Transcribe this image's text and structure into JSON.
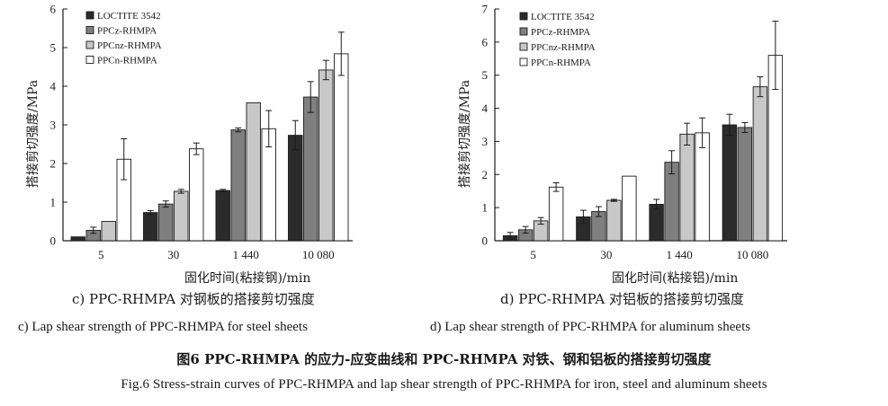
{
  "chart_data": [
    {
      "type": "bar",
      "panel": "c",
      "categories": [
        "5",
        "30",
        "1 440",
        "10 080"
      ],
      "series": [
        {
          "name": "LOCTITE 3542",
          "values": [
            0.1,
            0.73,
            1.3,
            2.73
          ],
          "errors": [
            0.0,
            0.05,
            0.03,
            0.38
          ],
          "color": "#2b2b2b"
        },
        {
          "name": "PPCz-RHMPA",
          "values": [
            0.27,
            0.95,
            2.87,
            3.72
          ],
          "errors": [
            0.08,
            0.08,
            0.05,
            0.4
          ],
          "color": "#7f7f7f"
        },
        {
          "name": "PPCnz-RHMPA",
          "values": [
            0.5,
            1.28,
            3.57,
            4.42
          ],
          "errors": [
            0.0,
            0.05,
            0.0,
            0.25
          ],
          "color": "#c8c8c8"
        },
        {
          "name": "PPCn-RHMPA",
          "values": [
            2.11,
            2.38,
            2.9,
            4.84
          ],
          "errors": [
            0.53,
            0.15,
            0.47,
            0.56
          ],
          "color": "#ffffff"
        }
      ],
      "xlabel": "固化时间(粘接钢)/min",
      "ylabel": "搭接剪切强度/MPa",
      "ylim": [
        0,
        6
      ],
      "yticks": [
        0,
        1,
        2,
        3,
        4,
        5,
        6
      ],
      "legend": "top-left",
      "grid": false,
      "caption_zh": "c) PPC-RHMPA 对钢板的搭接剪切强度",
      "caption_en": "c) Lap shear strength of PPC-RHMPA for steel sheets"
    },
    {
      "type": "bar",
      "panel": "d",
      "categories": [
        "5",
        "30",
        "1 440",
        "10 080"
      ],
      "series": [
        {
          "name": "LOCTITE 3542",
          "values": [
            0.15,
            0.72,
            1.1,
            3.5
          ],
          "errors": [
            0.1,
            0.2,
            0.15,
            0.32
          ],
          "color": "#2b2b2b"
        },
        {
          "name": "PPCz-RHMPA",
          "values": [
            0.33,
            0.88,
            2.37,
            3.42
          ],
          "errors": [
            0.1,
            0.15,
            0.35,
            0.15
          ],
          "color": "#7f7f7f"
        },
        {
          "name": "PPCnz-RHMPA",
          "values": [
            0.6,
            1.22,
            3.22,
            4.65
          ],
          "errors": [
            0.1,
            0.03,
            0.33,
            0.3
          ],
          "color": "#c8c8c8"
        },
        {
          "name": "PPCn-RHMPA",
          "values": [
            1.62,
            1.95,
            3.26,
            5.6
          ],
          "errors": [
            0.13,
            0.0,
            0.45,
            1.03
          ],
          "color": "#ffffff"
        }
      ],
      "xlabel": "固化时间(粘接铝)/min",
      "ylabel": "搭接剪切强度/MPa",
      "ylim": [
        0,
        7
      ],
      "yticks": [
        0,
        1,
        2,
        3,
        4,
        5,
        6,
        7
      ],
      "legend": "top-left",
      "grid": false,
      "caption_zh": "d) PPC-RHMPA 对铝板的搭接剪切强度",
      "caption_en": "d) Lap shear strength of PPC-RHMPA for aluminum sheets"
    }
  ],
  "figure": {
    "title_zh": "图6 PPC-RHMPA 的应力-应变曲线和 PPC-RHMPA 对铁、钢和铝板的搭接剪切强度",
    "title_en": "Fig.6 Stress-strain curves of PPC-RHMPA and lap shear strength of PPC-RHMPA for iron, steel and aluminum sheets"
  }
}
